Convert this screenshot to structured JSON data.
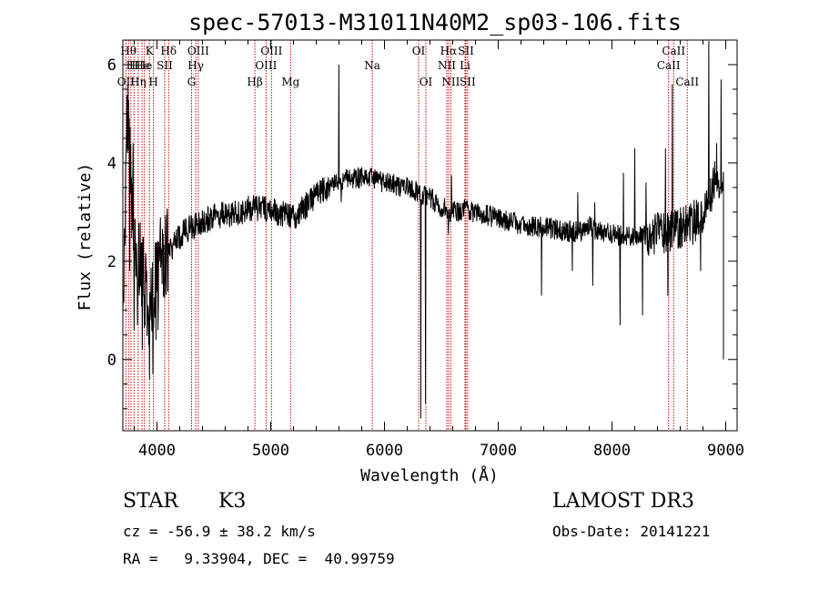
{
  "chart_data": {
    "type": "line",
    "title": "spec-57013-M31011N40M2_sp03-106.fits",
    "xlabel": "Wavelength (Å)",
    "ylabel": "Flux (relative)",
    "xlim": [
      3700,
      9100
    ],
    "ylim": [
      -1.45,
      6.5
    ],
    "x_ticks": [
      4000,
      5000,
      6000,
      7000,
      8000,
      9000
    ],
    "x_tick_labels": [
      "4000",
      "5000",
      "6000",
      "7000",
      "8000",
      "9000"
    ],
    "y_ticks": [
      0,
      2,
      4,
      6
    ],
    "y_tick_labels": [
      "0",
      "2",
      "4",
      "6"
    ],
    "x_minor_step": 200,
    "y_minor_step": 0.5,
    "line_color": "#000000",
    "marker_color": "#cc0000",
    "spectrum_knots": [
      [
        3700,
        1.1
      ],
      [
        3740,
        5.2
      ],
      [
        3780,
        2.9
      ],
      [
        3830,
        2.4
      ],
      [
        3880,
        1.6
      ],
      [
        3930,
        1.0
      ],
      [
        3970,
        1.3
      ],
      [
        4020,
        2.0
      ],
      [
        4100,
        2.2
      ],
      [
        4200,
        2.5
      ],
      [
        4300,
        2.7
      ],
      [
        4400,
        2.8
      ],
      [
        4500,
        2.9
      ],
      [
        4600,
        2.95
      ],
      [
        4700,
        3.0
      ],
      [
        4800,
        3.05
      ],
      [
        4900,
        3.1
      ],
      [
        5000,
        3.05
      ],
      [
        5100,
        2.95
      ],
      [
        5200,
        2.9
      ],
      [
        5300,
        3.1
      ],
      [
        5400,
        3.35
      ],
      [
        5500,
        3.5
      ],
      [
        5600,
        3.65
      ],
      [
        5700,
        3.7
      ],
      [
        5800,
        3.7
      ],
      [
        5900,
        3.7
      ],
      [
        6000,
        3.6
      ],
      [
        6100,
        3.55
      ],
      [
        6200,
        3.5
      ],
      [
        6300,
        3.4
      ],
      [
        6400,
        3.3
      ],
      [
        6500,
        3.1
      ],
      [
        6600,
        3.0
      ],
      [
        6700,
        3.05
      ],
      [
        6800,
        3.0
      ],
      [
        6900,
        2.95
      ],
      [
        7000,
        2.85
      ],
      [
        7100,
        2.8
      ],
      [
        7200,
        2.75
      ],
      [
        7300,
        2.7
      ],
      [
        7400,
        2.7
      ],
      [
        7500,
        2.65
      ],
      [
        7600,
        2.6
      ],
      [
        7700,
        2.6
      ],
      [
        7800,
        2.7
      ],
      [
        7900,
        2.6
      ],
      [
        8000,
        2.55
      ],
      [
        8100,
        2.5
      ],
      [
        8200,
        2.5
      ],
      [
        8300,
        2.5
      ],
      [
        8400,
        2.6
      ],
      [
        8500,
        2.6
      ],
      [
        8600,
        2.7
      ],
      [
        8700,
        2.75
      ],
      [
        8800,
        3.0
      ],
      [
        8900,
        3.6
      ],
      [
        8980,
        3.4
      ]
    ],
    "spectrum_spikes": [
      [
        3745,
        5.6
      ],
      [
        3760,
        1.8
      ],
      [
        3790,
        4.4
      ],
      [
        3800,
        0.6
      ],
      [
        3830,
        0.7
      ],
      [
        3870,
        0.2
      ],
      [
        3935,
        -0.4
      ],
      [
        3965,
        -0.3
      ],
      [
        3990,
        0.4
      ],
      [
        4010,
        0.6
      ],
      [
        5600,
        6.0
      ],
      [
        5620,
        3.2
      ],
      [
        6320,
        -1.2
      ],
      [
        6360,
        -0.9
      ],
      [
        6563,
        2.55
      ],
      [
        6590,
        3.75
      ],
      [
        6710,
        3.1
      ],
      [
        7380,
        1.3
      ],
      [
        7650,
        1.8
      ],
      [
        7700,
        3.4
      ],
      [
        7830,
        1.5
      ],
      [
        7850,
        3.2
      ],
      [
        8070,
        0.7
      ],
      [
        8100,
        3.8
      ],
      [
        8200,
        4.3
      ],
      [
        8270,
        0.9
      ],
      [
        8300,
        3.6
      ],
      [
        8470,
        4.3
      ],
      [
        8490,
        1.3
      ],
      [
        8530,
        5.6
      ],
      [
        8780,
        1.8
      ],
      [
        8850,
        6.5
      ],
      [
        8920,
        4.4
      ],
      [
        8960,
        5.7
      ]
    ],
    "lines": [
      {
        "wavelength": 3727,
        "label": "OII",
        "row": 3
      },
      {
        "wavelength": 3750,
        "label": "Hθ",
        "row": 1
      },
      {
        "wavelength": 3771,
        "label": "H",
        "row": 2
      },
      {
        "wavelength": 3798,
        "label": "H",
        "row": 2
      },
      {
        "wavelength": 3835,
        "label": "Hη",
        "row": 3
      },
      {
        "wavelength": 3869,
        "label": "He",
        "row": 2
      },
      {
        "wavelength": 3889,
        "label": "He",
        "row": 2
      },
      {
        "wavelength": 3934,
        "label": "K",
        "row": 1
      },
      {
        "wavelength": 3969,
        "label": "H",
        "row": 3
      },
      {
        "wavelength": 4068,
        "label": "SII",
        "row": 2
      },
      {
        "wavelength": 4102,
        "label": "Hδ",
        "row": 1
      },
      {
        "wavelength": 4304,
        "label": "G",
        "row": 3
      },
      {
        "wavelength": 4341,
        "label": "Hγ",
        "row": 2
      },
      {
        "wavelength": 4363,
        "label": "OIII",
        "row": 1
      },
      {
        "wavelength": 4861,
        "label": "Hβ",
        "row": 3
      },
      {
        "wavelength": 4959,
        "label": "OIII",
        "row": 2
      },
      {
        "wavelength": 5007,
        "label": "OIII",
        "row": 1
      },
      {
        "wavelength": 5175,
        "label": "Mg",
        "row": 3
      },
      {
        "wavelength": 5893,
        "label": "Na",
        "row": 2
      },
      {
        "wavelength": 6300,
        "label": "OI",
        "row": 1
      },
      {
        "wavelength": 6364,
        "label": "OI",
        "row": 3
      },
      {
        "wavelength": 6548,
        "label": "NII",
        "row": 2
      },
      {
        "wavelength": 6563,
        "label": "Hα",
        "row": 1
      },
      {
        "wavelength": 6583,
        "label": "NII",
        "row": 3
      },
      {
        "wavelength": 6708,
        "label": "Li",
        "row": 2
      },
      {
        "wavelength": 6716,
        "label": "SII",
        "row": 1
      },
      {
        "wavelength": 6731,
        "label": "SII",
        "row": 3
      },
      {
        "wavelength": 8498,
        "label": "CaII",
        "row": 2
      },
      {
        "wavelength": 8542,
        "label": "CaII",
        "row": 1
      },
      {
        "wavelength": 8662,
        "label": "CaII",
        "row": 3
      }
    ]
  },
  "info": {
    "object_class": "STAR",
    "subclass": "K3",
    "survey": "LAMOST DR3",
    "cz": "cz = -56.9 ± 38.2 km/s",
    "obs_date": "Obs-Date: 20141221",
    "radec": "RA =   9.33904, DEC =  40.99759"
  }
}
